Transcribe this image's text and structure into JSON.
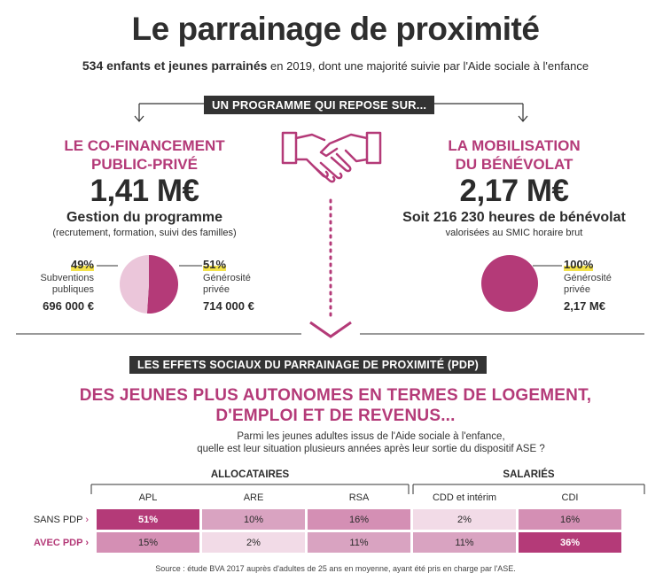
{
  "title": "Le parrainage de proximité",
  "subtitle": {
    "bold": "534 enfants et jeunes parrainés",
    "rest": " en 2019, dont une majorité suivie par l'Aide sociale à l'enfance"
  },
  "program_label": "UN PROGRAMME QUI REPOSE SUR...",
  "left": {
    "heading_line1": "LE CO-FINANCEMENT",
    "heading_line2": "PUBLIC-PRIVÉ",
    "amount": "1,41 M€",
    "subheading": "Gestion du programme",
    "detail": "(recrutement, formation, suivi des familles)",
    "pie": {
      "public_share": 49,
      "private_share": 51
    },
    "public": {
      "pct": "49%",
      "label_line1": "Subventions",
      "label_line2": "publiques",
      "amount": "696 000 €"
    },
    "private": {
      "pct": "51%",
      "label_line1": "Générosité",
      "label_line2": "privée",
      "amount": "714 000 €"
    }
  },
  "right": {
    "heading_line1": "LA MOBILISATION",
    "heading_line2": "DU BÉNÉVOLAT",
    "amount": "2,17 M€",
    "subheading": "Soit 216 230 heures de bénévolat",
    "detail": "valorisées au SMIC horaire brut",
    "private": {
      "pct": "100%",
      "label_line1": "Générosité",
      "label_line2": "privée",
      "amount": "2,17 M€"
    }
  },
  "effects_label": "LES EFFETS SOCIAUX DU PARRAINAGE DE PROXIMITÉ (PDP)",
  "section_title_line1": "DES JEUNES PLUS AUTONOMES EN TERMES DE LOGEMENT,",
  "section_title_line2": "D'EMPLOI ET DE REVENUS...",
  "question_line1": "Parmi les jeunes adultes issus de l'Aide sociale à l'enfance,",
  "question_line2": "quelle est leur situation plusieurs années après leur sortie du dispositif ASE ?",
  "table": {
    "group1": "ALLOCATAIRES",
    "group2": "SALARIÉS",
    "columns": [
      "APL",
      "ARE",
      "RSA",
      "CDD et intérim",
      "CDI"
    ],
    "rows": [
      {
        "label": "SANS PDP",
        "values": [
          "51%",
          "10%",
          "16%",
          "2%",
          "16%"
        ]
      },
      {
        "label": "AVEC PDP",
        "values": [
          "15%",
          "2%",
          "11%",
          "11%",
          "36%"
        ]
      }
    ]
  },
  "source": "Source : étude BVA 2017 auprès d'adultes de 25 ans en moyenne, ayant été pris en charge par l'ASE.",
  "colors": {
    "magenta": "#b43a78",
    "dark": "#333333",
    "light_pink": "#ebc6da",
    "medium_pink": "#d48fb4",
    "very_light_pink": "#f2dbe7",
    "highlight": "#f3e24a"
  }
}
